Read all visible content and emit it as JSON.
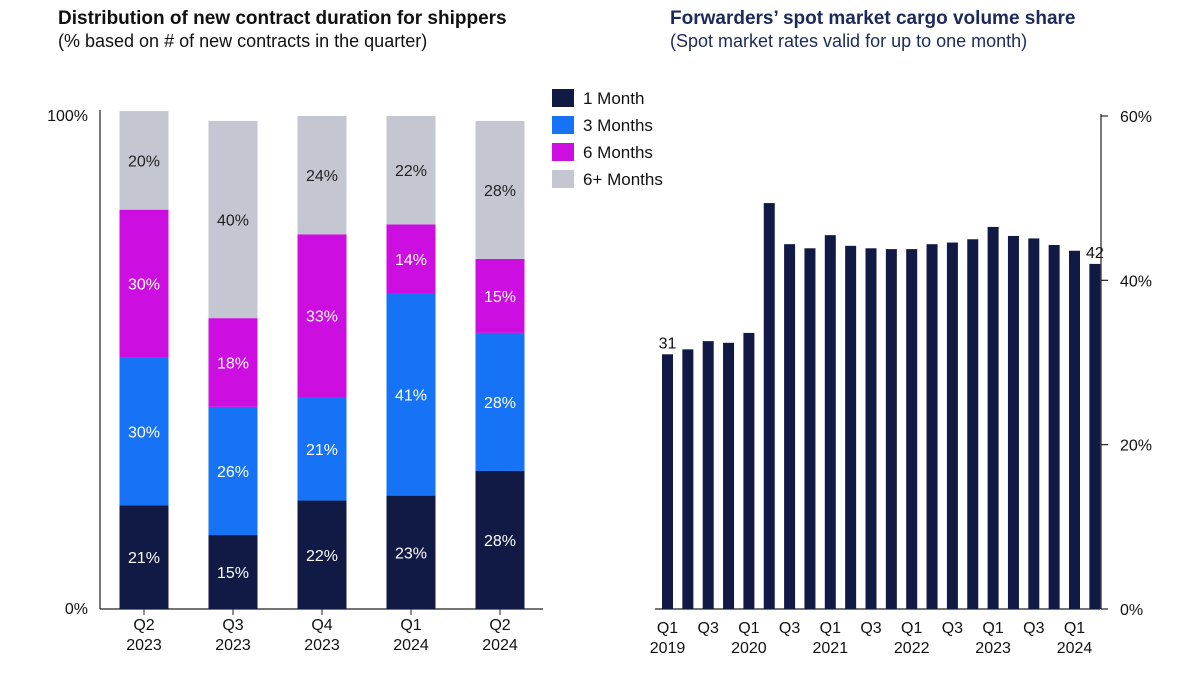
{
  "chart_data": [
    {
      "type": "bar",
      "stacked": true,
      "title": "Distribution of new contract duration for shippers",
      "subtitle": "(% based on # of new contracts in the quarter)",
      "categories": [
        [
          "Q2",
          "2023"
        ],
        [
          "Q3",
          "2023"
        ],
        [
          "Q4",
          "2023"
        ],
        [
          "Q1",
          "2024"
        ],
        [
          "Q2",
          "2024"
        ]
      ],
      "ylim": [
        0,
        100
      ],
      "yticks": [
        0,
        100
      ],
      "ytick_labels": [
        "0%",
        "100%"
      ],
      "legend_position": "right",
      "series": [
        {
          "name": "1 Month",
          "color": "#111a44",
          "label_color": "#ffffff",
          "values": [
            21,
            15,
            22,
            23,
            28
          ],
          "labels": [
            "21%",
            "15%",
            "22%",
            "23%",
            "28%"
          ]
        },
        {
          "name": "3 Months",
          "color": "#1673f5",
          "label_color": "#ffffff",
          "values": [
            30,
            26,
            21,
            41,
            28
          ],
          "labels": [
            "30%",
            "26%",
            "21%",
            "41%",
            "28%"
          ]
        },
        {
          "name": "6 Months",
          "color": "#cc0ee0",
          "label_color": "#ffffff",
          "values": [
            30,
            18,
            33,
            14,
            15
          ],
          "labels": [
            "30%",
            "18%",
            "33%",
            "14%",
            "15%"
          ]
        },
        {
          "name": "6+ Months",
          "color": "#c4c7d1",
          "label_color": "#222222",
          "values": [
            20,
            40,
            24,
            22,
            28
          ],
          "labels": [
            "20%",
            "40%",
            "24%",
            "22%",
            "28%"
          ]
        }
      ]
    },
    {
      "type": "bar",
      "title": "Forwarders’ spot market cargo volume share",
      "subtitle": "(Spot market rates valid for up to one month)",
      "color": "#111a44",
      "ylim": [
        0,
        60
      ],
      "yticks": [
        0,
        20,
        40,
        60
      ],
      "ytick_labels": [
        "0%",
        "20%",
        "40%",
        "60%"
      ],
      "y_axis_side": "right",
      "x": [
        "Q1 2019",
        "Q2 2019",
        "Q3 2019",
        "Q4 2019",
        "Q1 2020",
        "Q2 2020",
        "Q3 2020",
        "Q4 2020",
        "Q1 2021",
        "Q2 2021",
        "Q3 2021",
        "Q4 2021",
        "Q1 2022",
        "Q2 2022",
        "Q3 2022",
        "Q4 2022",
        "Q1 2023",
        "Q2 2023",
        "Q3 2023",
        "Q4 2023",
        "Q1 2024",
        "Q2 2024"
      ],
      "values": [
        31,
        31.6,
        32.6,
        32.4,
        33.6,
        49.4,
        44.4,
        43.9,
        45.5,
        44.2,
        43.9,
        43.8,
        43.8,
        44.4,
        44.6,
        45.0,
        46.5,
        45.4,
        45.1,
        44.3,
        43.6,
        42
      ],
      "tick_labels": [
        [
          "Q1",
          "2019"
        ],
        [
          "Q3",
          ""
        ],
        [
          "Q1",
          "2020"
        ],
        [
          "Q3",
          ""
        ],
        [
          "Q1",
          "2021"
        ],
        [
          "Q3",
          ""
        ],
        [
          "Q1",
          "2022"
        ],
        [
          "Q3",
          ""
        ],
        [
          "Q1",
          "2023"
        ],
        [
          "Q3",
          ""
        ],
        [
          "Q1",
          "2024"
        ]
      ],
      "annotations": [
        {
          "index": 0,
          "text": "31"
        },
        {
          "index": 21,
          "text": "42"
        }
      ]
    }
  ]
}
